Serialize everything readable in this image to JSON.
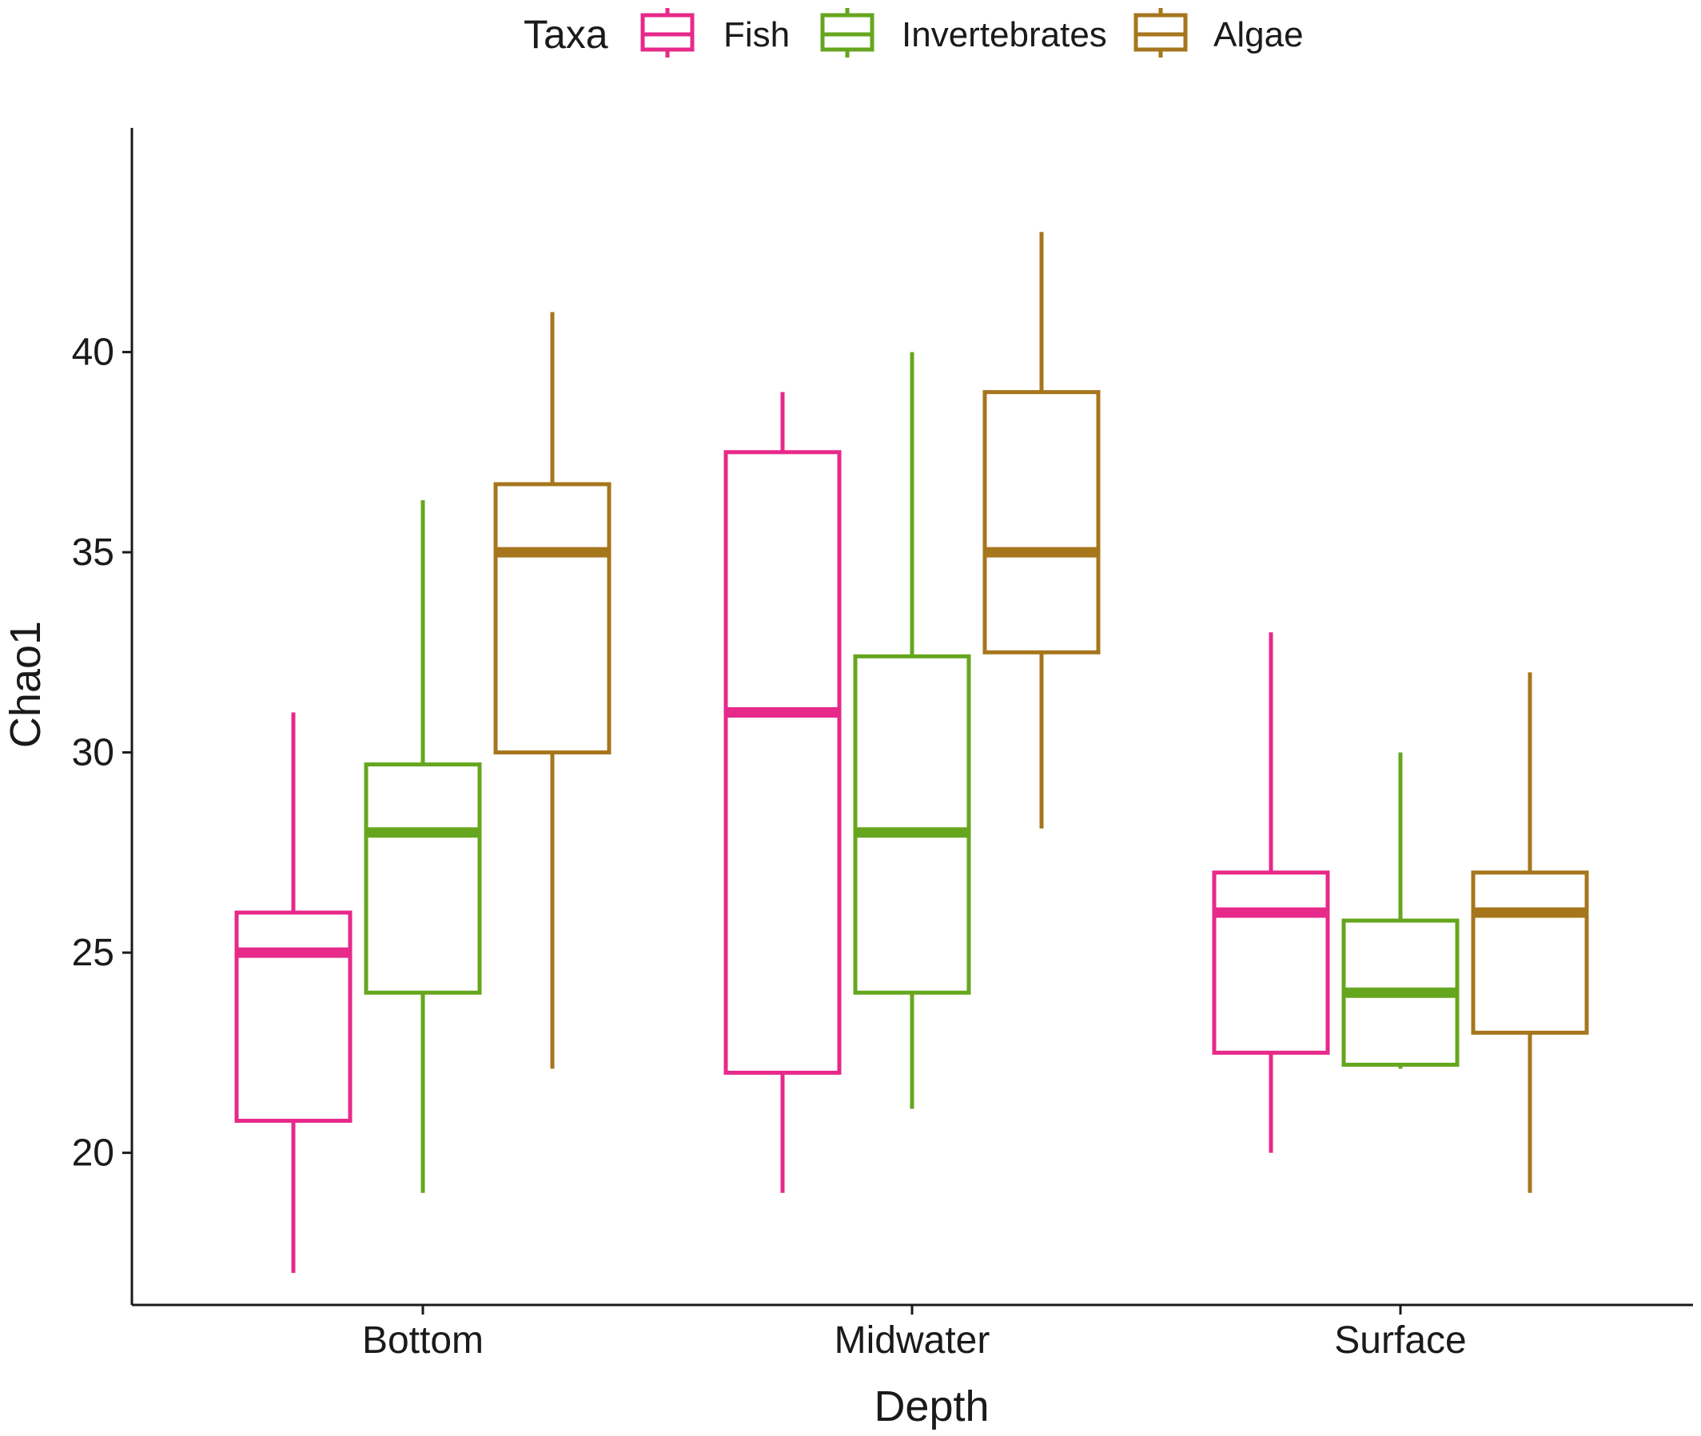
{
  "chart_data": {
    "type": "boxplot",
    "xlabel": "Depth",
    "ylabel": "Chao1",
    "categories": [
      "Bottom",
      "Midwater",
      "Surface"
    ],
    "yticks": [
      20,
      25,
      30,
      35,
      40
    ],
    "ylim": [
      16.2,
      45.6
    ],
    "grid": false,
    "legend": {
      "title": "Taxa",
      "placement": "top-center"
    },
    "series": [
      {
        "name": "Fish",
        "color": "#e7298a",
        "boxes": [
          {
            "category": "Bottom",
            "whisker_low": 17.0,
            "q1": 20.8,
            "median": 25.0,
            "q3": 26.0,
            "whisker_high": 31.0
          },
          {
            "category": "Midwater",
            "whisker_low": 19.0,
            "q1": 22.0,
            "median": 31.0,
            "q3": 37.5,
            "whisker_high": 39.0
          },
          {
            "category": "Surface",
            "whisker_low": 20.0,
            "q1": 22.5,
            "median": 26.0,
            "q3": 27.0,
            "whisker_high": 33.0
          }
        ]
      },
      {
        "name": "Invertebrates",
        "color": "#66a61e",
        "boxes": [
          {
            "category": "Bottom",
            "whisker_low": 19.0,
            "q1": 24.0,
            "median": 28.0,
            "q3": 29.7,
            "whisker_high": 36.3
          },
          {
            "category": "Midwater",
            "whisker_low": 21.1,
            "q1": 24.0,
            "median": 28.0,
            "q3": 32.4,
            "whisker_high": 40.0
          },
          {
            "category": "Surface",
            "whisker_low": 22.1,
            "q1": 22.2,
            "median": 24.0,
            "q3": 25.8,
            "whisker_high": 30.0
          }
        ]
      },
      {
        "name": "Algae",
        "color": "#a6761d",
        "boxes": [
          {
            "category": "Bottom",
            "whisker_low": 22.1,
            "q1": 30.0,
            "median": 35.0,
            "q3": 36.7,
            "whisker_high": 41.0
          },
          {
            "category": "Midwater",
            "whisker_low": 28.1,
            "q1": 32.5,
            "median": 35.0,
            "q3": 39.0,
            "whisker_high": 43.0
          },
          {
            "category": "Surface",
            "whisker_low": 19.0,
            "q1": 23.0,
            "median": 26.0,
            "q3": 27.0,
            "whisker_high": 32.0
          }
        ]
      }
    ]
  }
}
